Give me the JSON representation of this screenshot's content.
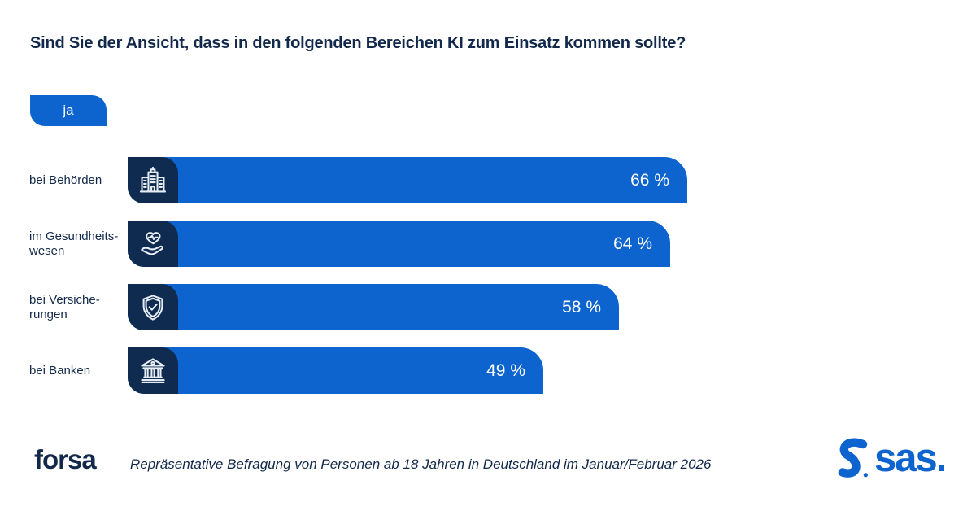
{
  "title": "Sind Sie der Ansicht, dass in den folgenden Bereichen KI zum Einsatz kommen sollte?",
  "legend_badge": "ja",
  "chart_data": {
    "type": "bar",
    "orientation": "horizontal",
    "title": "Sind Sie der Ansicht, dass in den folgenden Bereichen KI zum Einsatz kommen sollte?",
    "series_label": "ja",
    "unit": "%",
    "xlim": [
      0,
      100
    ],
    "grid": false,
    "categories": [
      "bei Behörden",
      "im Gesundheitswesen",
      "bei Versicherungen",
      "bei Banken"
    ],
    "label_lines": [
      [
        "bei Behörden"
      ],
      [
        "im Gesundheits-",
        "wesen"
      ],
      [
        "bei Versiche-",
        "rungen"
      ],
      [
        "bei Banken"
      ]
    ],
    "values": [
      66,
      64,
      58,
      49
    ],
    "value_labels": [
      "66 %",
      "64 %",
      "58 %",
      "49 %"
    ],
    "icons": [
      "government-building-icon",
      "healthcare-hand-heart-icon",
      "insurance-shield-check-icon",
      "bank-icon"
    ],
    "bar_color": "#0d64cf",
    "icon_tile_color": "#0f2b50"
  },
  "footer": {
    "source_logo_text": "forsa",
    "note": "Repräsentative Befragung von Personen ab 18 Jahren in Deutschland im Januar/Februar 2026",
    "brand_logo_text": "sas."
  },
  "colors": {
    "bar_blue": "#0d64cf",
    "tile_navy": "#0f2b50",
    "text_navy": "#12294b",
    "value_text": "#ffffff",
    "background": "#ffffff"
  }
}
